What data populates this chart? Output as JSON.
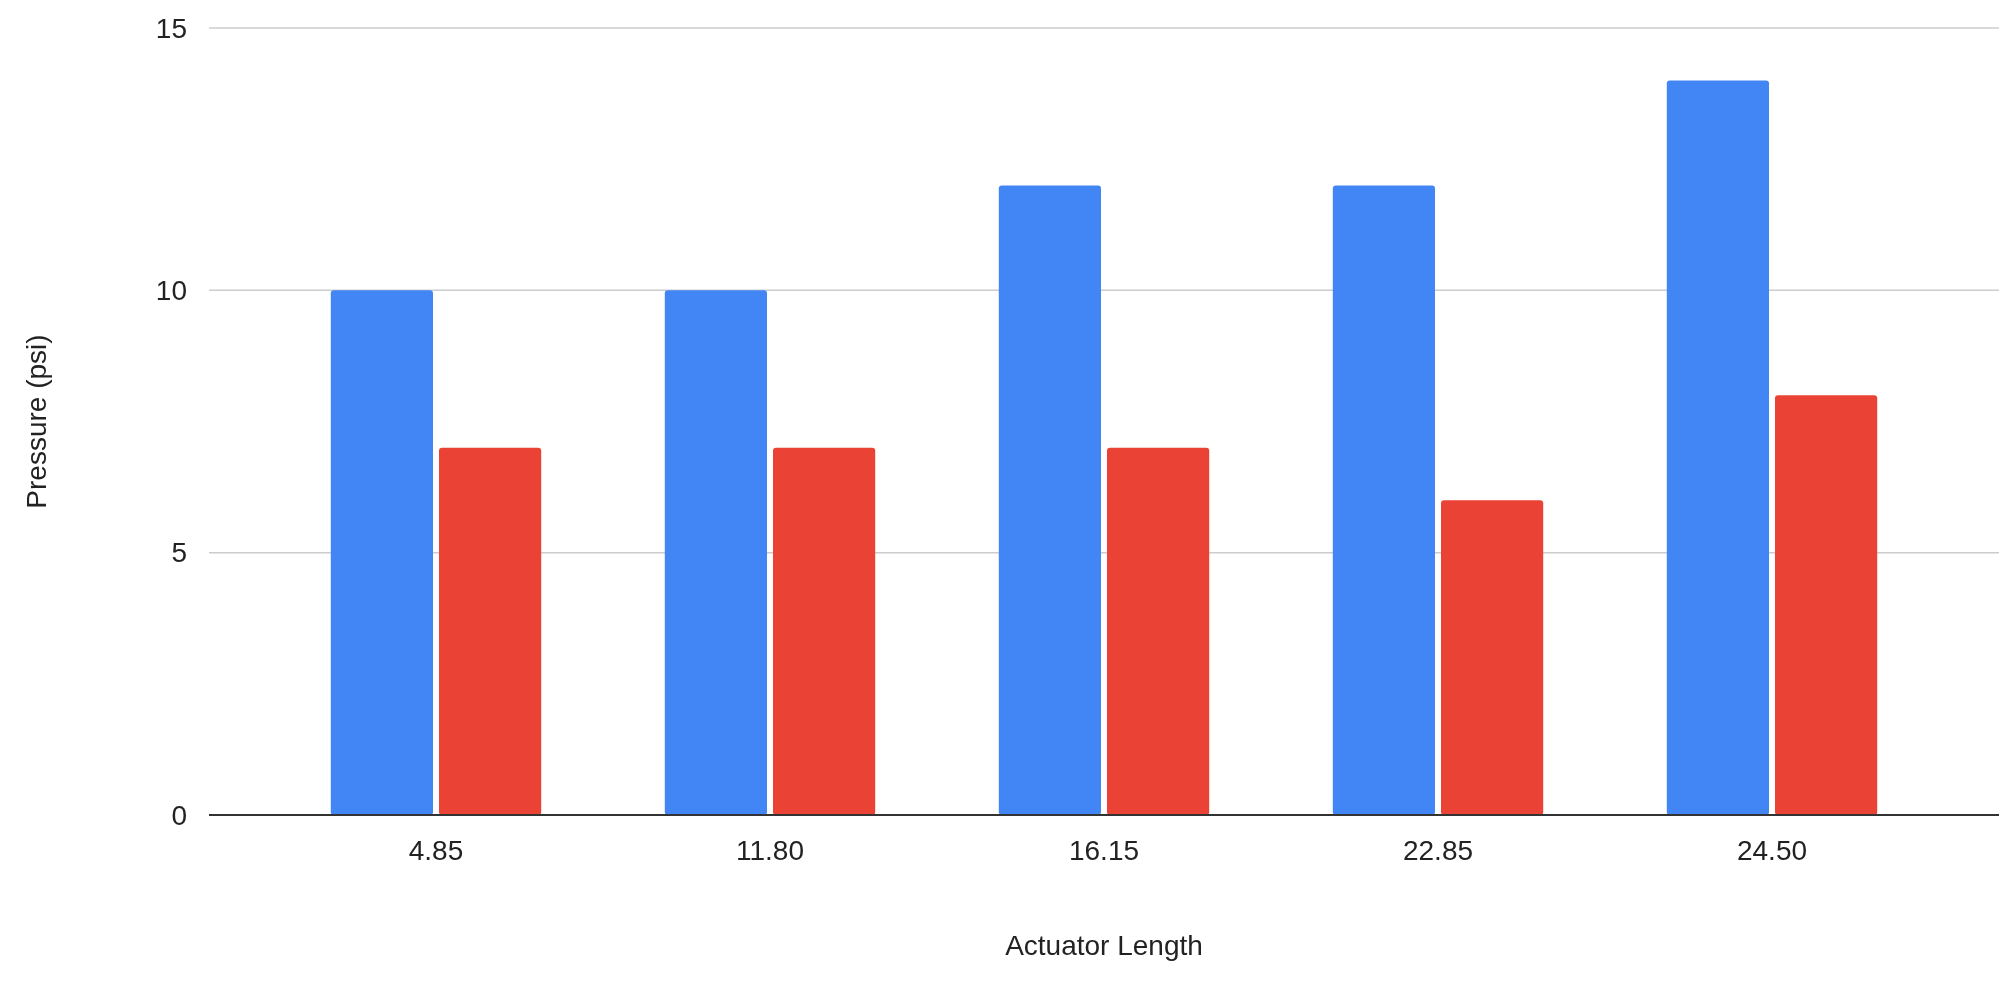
{
  "chart_data": {
    "type": "bar",
    "xlabel": "Actuator Length",
    "ylabel": "Pressure (psi)",
    "categories": [
      "4.85",
      "11.80",
      "16.15",
      "22.85",
      "24.50"
    ],
    "series": [
      {
        "color": "#4285f4",
        "values": [
          10,
          10,
          12,
          12,
          14
        ]
      },
      {
        "color": "#ea4335",
        "values": [
          7,
          7,
          7,
          6,
          8
        ]
      }
    ],
    "ylim": [
      0,
      15
    ],
    "yticks": [
      0,
      5,
      10,
      15
    ],
    "grid": "y"
  }
}
